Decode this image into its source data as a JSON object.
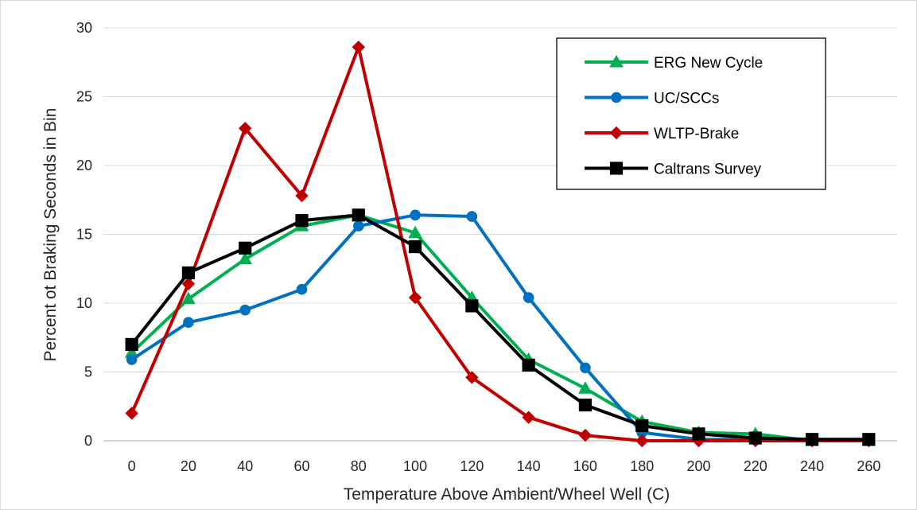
{
  "chart_data": {
    "type": "line",
    "title": "",
    "xlabel": "Temperature Above Ambient/Wheel Well (C)",
    "ylabel": "Percent ot Braking Seconds in Bin",
    "x": [
      0,
      20,
      40,
      60,
      80,
      100,
      120,
      140,
      160,
      180,
      200,
      220,
      240,
      260
    ],
    "ylim": [
      0,
      30
    ],
    "yticks": [
      0,
      5,
      10,
      15,
      20,
      25,
      30
    ],
    "grid": true,
    "legend_position": "top-right",
    "series": [
      {
        "name": "ERG New Cycle",
        "color": "#00b050",
        "marker": "triangle",
        "values": [
          6.4,
          10.3,
          13.2,
          15.6,
          16.4,
          15.1,
          10.4,
          5.9,
          3.8,
          1.4,
          0.6,
          0.5,
          0.0,
          0.0
        ]
      },
      {
        "name": "UC/SCCs",
        "color": "#0070c0",
        "marker": "circle",
        "values": [
          5.9,
          8.6,
          9.5,
          11.0,
          15.6,
          16.4,
          16.3,
          10.4,
          5.3,
          0.6,
          0.1,
          0.1,
          0.1,
          0.1
        ]
      },
      {
        "name": "WLTP-Brake",
        "color": "#c00000",
        "marker": "diamond",
        "values": [
          2.0,
          11.4,
          22.7,
          17.8,
          28.6,
          10.4,
          4.6,
          1.7,
          0.4,
          0.0,
          0.0,
          0.0,
          0.0,
          0.0
        ]
      },
      {
        "name": "Caltrans Survey",
        "color": "#000000",
        "marker": "square",
        "values": [
          7.0,
          12.2,
          14.0,
          16.0,
          16.4,
          14.1,
          9.8,
          5.5,
          2.6,
          1.1,
          0.5,
          0.2,
          0.1,
          0.1
        ]
      }
    ]
  }
}
